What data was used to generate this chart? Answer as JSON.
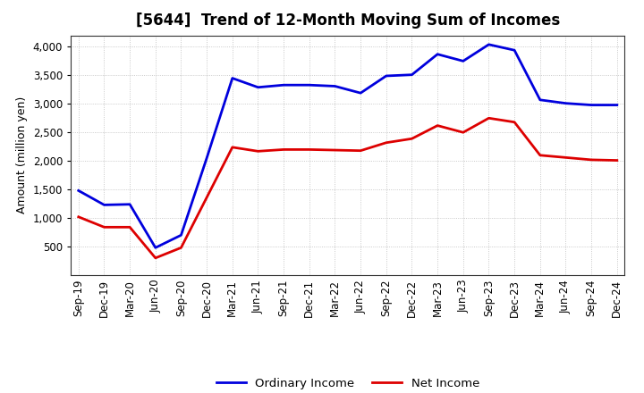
{
  "title": "[5644]  Trend of 12-Month Moving Sum of Incomes",
  "ylabel": "Amount (million yen)",
  "x_labels": [
    "Sep-19",
    "Dec-19",
    "Mar-20",
    "Jun-20",
    "Sep-20",
    "Dec-20",
    "Mar-21",
    "Jun-21",
    "Sep-21",
    "Dec-21",
    "Mar-22",
    "Jun-22",
    "Sep-22",
    "Dec-22",
    "Mar-23",
    "Jun-23",
    "Sep-23",
    "Dec-23",
    "Mar-24",
    "Jun-24",
    "Sep-24",
    "Dec-24"
  ],
  "ordinary_income": [
    1480,
    1230,
    1240,
    480,
    700,
    2050,
    3450,
    3290,
    3330,
    3330,
    3310,
    3190,
    3490,
    3510,
    3870,
    3750,
    4040,
    3940,
    3070,
    3010,
    2980,
    2980
  ],
  "net_income": [
    1020,
    840,
    840,
    300,
    480,
    1360,
    2240,
    2170,
    2200,
    2200,
    2190,
    2180,
    2320,
    2390,
    2620,
    2500,
    2750,
    2680,
    2100,
    2060,
    2020,
    2010
  ],
  "ordinary_color": "#0000dd",
  "net_color": "#dd0000",
  "ylim_min": 0,
  "ylim_max": 4200,
  "yticks": [
    500,
    1000,
    1500,
    2000,
    2500,
    3000,
    3500,
    4000
  ],
  "line_width": 2.0,
  "background_color": "#ffffff",
  "plot_bg_color": "#ffffff",
  "grid_color": "#bbbbbb",
  "legend_ordinary": "Ordinary Income",
  "legend_net": "Net Income",
  "title_fontsize": 12,
  "tick_fontsize": 8.5,
  "ylabel_fontsize": 9
}
